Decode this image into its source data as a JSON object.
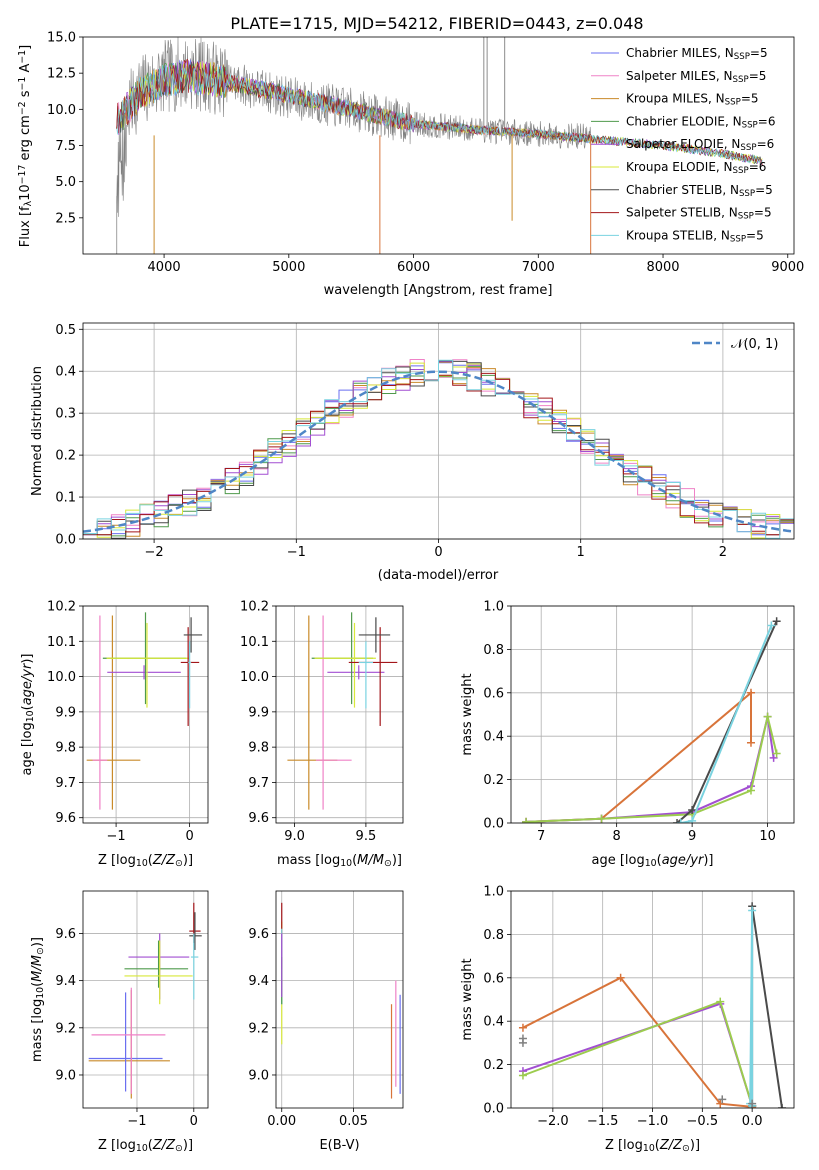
{
  "figure": {
    "title": "PLATE=1715, MJD=54212, FIBERID=0443, z=0.048"
  },
  "colors": {
    "chabrier_miles": "#6a6ff0",
    "salpeter_miles": "#ef82c7",
    "kroupa_miles": "#c98a2a",
    "chabrier_elodie": "#4f9a4b",
    "salpeter_elodie": "#a24fd2",
    "kroupa_elodie": "#d8e83a",
    "chabrier_stelib": "#4a4a4a",
    "salpeter_stelib": "#a3161a",
    "kroupa_stelib": "#7ad3e0",
    "data": "#808080",
    "normal": "#4f86c6",
    "orange_model": "#d8743a",
    "green_model": "#9ccc4e"
  },
  "chart_data": [
    {
      "panel": "spectrum",
      "type": "line",
      "xlabel": "wavelength [Angstrom, rest frame]",
      "ylabel": "Flux [fλ10⁻¹⁷ erg cm⁻² s⁻¹ A⁻¹]",
      "xlim": [
        3350,
        9050
      ],
      "ylim": [
        0,
        15
      ],
      "xticks": [
        "4000",
        "5000",
        "6000",
        "7000",
        "8000",
        "9000"
      ],
      "yticks": [
        "2.5",
        "5.0",
        "7.5",
        "10.0",
        "12.5",
        "15.0"
      ],
      "legend": [
        "Chabrier MILES, N_SSP=5",
        "Salpeter MILES, N_SSP=5",
        "Kroupa MILES, N_SSP=5",
        "Chabrier ELODIE, N_SSP=6",
        "Salpeter ELODIE, N_SSP=6",
        "Kroupa ELODIE, N_SSP=6",
        "Chabrier STELIB, N_SSP=5",
        "Salpeter STELIB, N_SSP=5",
        "Kroupa STELIB, N_SSP=5"
      ],
      "legend_location": "upper right",
      "continuum": [
        [
          3620,
          8.5
        ],
        [
          3800,
          11.2
        ],
        [
          4000,
          12.2
        ],
        [
          4200,
          12.6
        ],
        [
          4500,
          12.0
        ],
        [
          5000,
          10.8
        ],
        [
          5500,
          10.0
        ],
        [
          6000,
          9.0
        ],
        [
          6500,
          8.6
        ],
        [
          7000,
          8.3
        ],
        [
          7420,
          8.1
        ]
      ],
      "model_continuum": [
        [
          3620,
          9.2
        ],
        [
          3800,
          11.0
        ],
        [
          4000,
          12.0
        ],
        [
          4200,
          12.3
        ],
        [
          4500,
          11.9
        ],
        [
          5000,
          11.0
        ],
        [
          5500,
          10.0
        ],
        [
          6000,
          9.0
        ],
        [
          6500,
          8.6
        ],
        [
          7000,
          8.3
        ],
        [
          7500,
          7.9
        ],
        [
          8000,
          7.5
        ],
        [
          8500,
          6.9
        ],
        [
          8800,
          6.4
        ]
      ],
      "emission_spikes": [
        [
          6563,
          15
        ],
        [
          6590,
          15
        ],
        [
          6730,
          15
        ]
      ],
      "absorption_spikes": [
        [
          3920,
          0
        ],
        [
          5730,
          0
        ],
        [
          6790,
          2.3
        ],
        [
          7420,
          0
        ]
      ]
    },
    {
      "panel": "residuals",
      "type": "histogram",
      "xlabel": "(data-model)/error",
      "ylabel": "Normed distribution",
      "xlim": [
        -2.5,
        2.5
      ],
      "ylim": [
        0,
        0.515
      ],
      "xticks": [
        "−2",
        "−1",
        "0",
        "1",
        "2"
      ],
      "yticks": [
        "0.0",
        "0.1",
        "0.2",
        "0.3",
        "0.4",
        "0.5"
      ],
      "bin_width": 0.1,
      "legend": [
        "𝒩(0, 1)"
      ],
      "reference_curve": "normal(0,1)"
    },
    {
      "panel": "age_vs_Z",
      "type": "scatter",
      "xlabel": "Z [log10(Z/Z⊙)]",
      "ylabel": "age  [log10(age/yr)]",
      "xlim": [
        -1.45,
        0.25
      ],
      "ylim": [
        9.585,
        10.2
      ],
      "xticks": [
        "−1",
        "0"
      ],
      "yticks": [
        "9.6",
        "9.7",
        "9.8",
        "9.9",
        "10.0",
        "10.1",
        "10.2"
      ],
      "points": [
        {
          "x": -1.05,
          "y": 9.763,
          "xerr": [
            0.35,
            0.38
          ],
          "yerr": [
            0.14,
            0.41
          ],
          "model": "kroupa_miles"
        },
        {
          "x": -1.22,
          "y": 9.763,
          "xerr": [
            0.1,
            0.1
          ],
          "yerr": [
            0.14,
            0.41
          ],
          "model": "salpeter_miles"
        },
        {
          "x": -0.62,
          "y": 10.012,
          "xerr": [
            0.5,
            0.5
          ],
          "yerr": [
            0.02,
            0.02
          ],
          "model": "salpeter_elodie"
        },
        {
          "x": -0.6,
          "y": 10.052,
          "xerr": [
            0.58,
            0.55
          ],
          "yerr": [
            0.13,
            0.13
          ],
          "model": "chabrier_elodie"
        },
        {
          "x": -0.58,
          "y": 10.052,
          "xerr": [
            0.55,
            0.58
          ],
          "yerr": [
            0.14,
            0.1
          ],
          "model": "kroupa_elodie"
        },
        {
          "x": -0.02,
          "y": 10.04,
          "xerr": [
            0.1,
            0.15
          ],
          "yerr": [
            0.18,
            0.1
          ],
          "model": "salpeter_stelib"
        },
        {
          "x": 0.02,
          "y": 10.118,
          "xerr": [
            0.1,
            0.15
          ],
          "yerr": [
            0.05,
            0.05
          ],
          "model": "chabrier_stelib"
        },
        {
          "x": 0.0,
          "y": 10.04,
          "xerr": [
            0.02,
            0.02
          ],
          "yerr": [
            0.13,
            0.06
          ],
          "model": "kroupa_stelib"
        }
      ]
    },
    {
      "panel": "age_vs_mass",
      "type": "scatter",
      "xlabel": "mass [log10(M/M⊙)]",
      "ylabel": "",
      "xlim": [
        8.87,
        9.76
      ],
      "ylim": [
        9.585,
        10.2
      ],
      "xticks": [
        "9.0",
        "9.5"
      ],
      "yticks": [
        "9.6",
        "9.7",
        "9.8",
        "9.9",
        "10.0",
        "10.1",
        "10.2"
      ],
      "points": [
        {
          "x": 9.1,
          "y": 9.763,
          "xerr": [
            0.15,
            0.2
          ],
          "yerr": [
            0.14,
            0.41
          ],
          "model": "kroupa_miles"
        },
        {
          "x": 9.2,
          "y": 9.763,
          "xerr": [
            0.05,
            0.2
          ],
          "yerr": [
            0.14,
            0.41
          ],
          "model": "salpeter_miles"
        },
        {
          "x": 9.45,
          "y": 10.012,
          "xerr": [
            0.22,
            0.18
          ],
          "yerr": [
            0.02,
            0.02
          ],
          "model": "salpeter_elodie"
        },
        {
          "x": 9.4,
          "y": 10.052,
          "xerr": [
            0.28,
            0.15
          ],
          "yerr": [
            0.13,
            0.13
          ],
          "model": "chabrier_elodie"
        },
        {
          "x": 9.42,
          "y": 10.052,
          "xerr": [
            0.28,
            0.15
          ],
          "yerr": [
            0.14,
            0.1
          ],
          "model": "kroupa_elodie"
        },
        {
          "x": 9.6,
          "y": 10.04,
          "xerr": [
            0.22,
            0.12
          ],
          "yerr": [
            0.18,
            0.1
          ],
          "model": "salpeter_stelib"
        },
        {
          "x": 9.57,
          "y": 10.118,
          "xerr": [
            0.12,
            0.1
          ],
          "yerr": [
            0.05,
            0.05
          ],
          "model": "chabrier_stelib"
        },
        {
          "x": 9.5,
          "y": 10.04,
          "xerr": [
            0.05,
            0.05
          ],
          "yerr": [
            0.13,
            0.06
          ],
          "model": "kroupa_stelib"
        }
      ]
    },
    {
      "panel": "mass_weight_vs_age",
      "type": "line",
      "xlabel": "age  [log10(age/yr)]",
      "ylabel": "mass weight",
      "xlim": [
        6.6,
        10.35
      ],
      "ylim": [
        0,
        1.0
      ],
      "xticks": [
        "7",
        "8",
        "9",
        "10"
      ],
      "yticks": [
        "0.0",
        "0.2",
        "0.4",
        "0.6",
        "0.8",
        "1.0"
      ],
      "series": [
        {
          "model": "orange_model",
          "x": [
            6.8,
            7.8,
            9.78,
            9.78
          ],
          "y": [
            0.005,
            0.02,
            0.6,
            0.37
          ]
        },
        {
          "model": "salpeter_elodie",
          "x": [
            6.8,
            7.8,
            9.0,
            9.78,
            10.0,
            10.08
          ],
          "y": [
            0.005,
            0.02,
            0.05,
            0.17,
            0.49,
            0.3
          ]
        },
        {
          "model": "green_model",
          "x": [
            6.8,
            7.8,
            9.0,
            9.78,
            10.0,
            10.12
          ],
          "y": [
            0.005,
            0.02,
            0.04,
            0.15,
            0.49,
            0.32
          ]
        },
        {
          "model": "chabrier_stelib",
          "x": [
            8.8,
            9.0,
            10.12
          ],
          "y": [
            0.0,
            0.06,
            0.93
          ]
        },
        {
          "model": "kroupa_stelib",
          "x": [
            8.85,
            9.0,
            10.05
          ],
          "y": [
            0.0,
            0.01,
            0.91
          ]
        }
      ]
    },
    {
      "panel": "mass_vs_Z",
      "type": "scatter",
      "xlabel": "Z [log10(Z/Z⊙)]",
      "ylabel": "mass [log10(M/M⊙)]",
      "xlim": [
        -1.95,
        0.25
      ],
      "ylim": [
        8.86,
        9.78
      ],
      "xticks": [
        "−1",
        "0"
      ],
      "yticks": [
        "9.0",
        "9.2",
        "9.4",
        "9.6"
      ],
      "points": [
        {
          "x": -1.1,
          "y": 9.06,
          "xerr": [
            0.75,
            0.68
          ],
          "yerr": [
            0.16,
            0.3
          ],
          "model": "kroupa_miles"
        },
        {
          "x": -1.2,
          "y": 9.07,
          "xerr": [
            0.65,
            0.65
          ],
          "yerr": [
            0.14,
            0.28
          ],
          "model": "chabrier_miles"
        },
        {
          "x": -1.1,
          "y": 9.17,
          "xerr": [
            0.7,
            0.6
          ],
          "yerr": [
            0.25,
            0.2
          ],
          "model": "salpeter_miles"
        },
        {
          "x": -0.6,
          "y": 9.5,
          "xerr": [
            0.55,
            0.52
          ],
          "yerr": [
            0.18,
            0.1
          ],
          "model": "salpeter_elodie"
        },
        {
          "x": -0.62,
          "y": 9.45,
          "xerr": [
            0.6,
            0.52
          ],
          "yerr": [
            0.08,
            0.12
          ],
          "model": "chabrier_elodie"
        },
        {
          "x": -0.6,
          "y": 9.42,
          "xerr": [
            0.62,
            0.58
          ],
          "yerr": [
            0.12,
            0.15
          ],
          "model": "kroupa_elodie"
        },
        {
          "x": 0.0,
          "y": 9.61,
          "xerr": [
            0.08,
            0.12
          ],
          "yerr": [
            0.05,
            0.12
          ],
          "model": "salpeter_stelib"
        },
        {
          "x": 0.02,
          "y": 9.59,
          "xerr": [
            0.1,
            0.12
          ],
          "yerr": [
            0.06,
            0.1
          ],
          "model": "chabrier_stelib"
        },
        {
          "x": 0.0,
          "y": 9.5,
          "xerr": [
            0.05,
            0.08
          ],
          "yerr": [
            0.18,
            0.1
          ],
          "model": "kroupa_stelib"
        }
      ]
    },
    {
      "panel": "mass_vs_EBV",
      "type": "scatter",
      "xlabel": "E(B-V)",
      "ylabel": "",
      "xlim": [
        -0.004,
        0.0845
      ],
      "ylim": [
        8.86,
        9.78
      ],
      "xticks": [
        "0.00",
        "0.05"
      ],
      "yticks": [
        "9.0",
        "9.2",
        "9.4",
        "9.6"
      ],
      "points": [
        {
          "x": 0.0,
          "y": 9.3,
          "xerr": [
            0,
            0
          ],
          "yerr": [
            0.17,
            0.35
          ],
          "model": "kroupa_elodie"
        },
        {
          "x": 0.0,
          "y": 9.6,
          "xerr": [
            0,
            0
          ],
          "yerr": [
            0.15,
            0.13
          ],
          "model": "salpeter_stelib"
        },
        {
          "x": 0.0,
          "y": 9.5,
          "xerr": [
            0,
            0
          ],
          "yerr": [
            0.2,
            0.12
          ],
          "model": "kroupa_stelib"
        },
        {
          "x": 0.0,
          "y": 9.4,
          "xerr": [
            0,
            0
          ],
          "yerr": [
            0.1,
            0.1
          ],
          "model": "chabrier_elodie"
        },
        {
          "x": 0.0,
          "y": 9.45,
          "xerr": [
            0,
            0
          ],
          "yerr": [
            0.12,
            0.15
          ],
          "model": "salpeter_elodie"
        },
        {
          "x": 0.0765,
          "y": 9.1,
          "xerr": [
            0,
            0
          ],
          "yerr": [
            0.2,
            0.2
          ],
          "model": "orange_model"
        },
        {
          "x": 0.0795,
          "y": 9.2,
          "xerr": [
            0,
            0
          ],
          "yerr": [
            0.25,
            0.2
          ],
          "model": "salpeter_miles"
        },
        {
          "x": 0.0825,
          "y": 9.12,
          "xerr": [
            0,
            0
          ],
          "yerr": [
            0.2,
            0.22
          ],
          "model": "chabrier_miles"
        }
      ]
    },
    {
      "panel": "mass_weight_vs_Z",
      "type": "line",
      "xlabel": "Z [log10(Z/Z⊙)]",
      "ylabel": "mass weight",
      "xlim": [
        -2.42,
        0.42
      ],
      "ylim": [
        0,
        1.0
      ],
      "xticks": [
        "−2.0",
        "−1.5",
        "−1.0",
        "−0.5",
        "0.0"
      ],
      "yticks": [
        "0.0",
        "0.2",
        "0.4",
        "0.6",
        "0.8",
        "1.0"
      ],
      "series": [
        {
          "model": "orange_model",
          "x": [
            -2.3,
            -1.32,
            -0.32,
            0.0
          ],
          "y": [
            0.37,
            0.6,
            0.02,
            0.005
          ]
        },
        {
          "model": "salpeter_elodie",
          "x": [
            -2.3,
            -0.32,
            0.0
          ],
          "y": [
            0.17,
            0.48,
            0.01
          ]
        },
        {
          "model": "green_model",
          "x": [
            -2.3,
            -0.32,
            0.0
          ],
          "y": [
            0.15,
            0.49,
            0.01
          ]
        },
        {
          "model": "chabrier_stelib",
          "x": [
            0.0,
            0.0,
            0.3
          ],
          "y": [
            0.01,
            0.93,
            0.0
          ]
        },
        {
          "model": "kroupa_stelib",
          "x": [
            0.0,
            0.0,
            -0.02
          ],
          "y": [
            0.01,
            0.91,
            0.02
          ]
        }
      ],
      "markers": [
        {
          "x": -2.3,
          "y": 0.3
        },
        {
          "x": -2.3,
          "y": 0.32
        },
        {
          "x": -0.3,
          "y": 0.04
        },
        {
          "x": 0.0,
          "y": 0.02
        }
      ]
    }
  ]
}
